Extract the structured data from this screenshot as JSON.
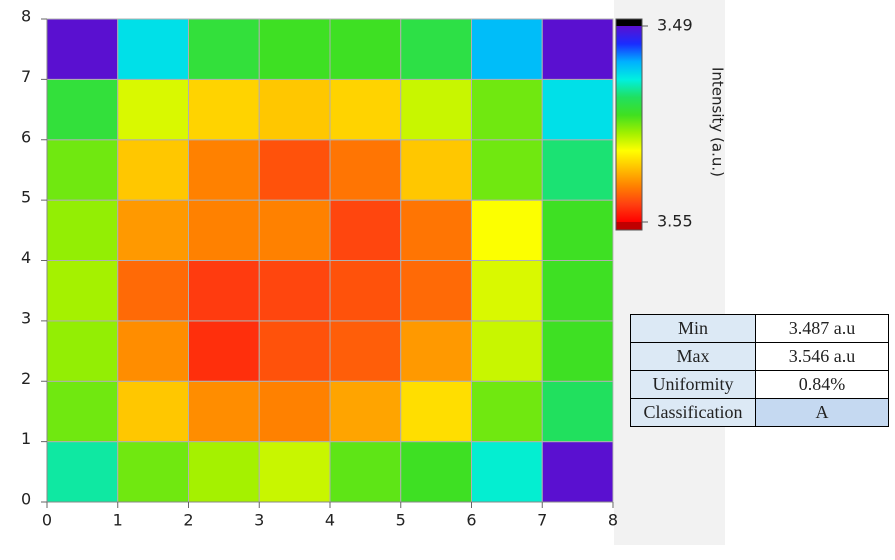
{
  "chart_data": {
    "type": "heatmap",
    "xlim": [
      0,
      8
    ],
    "xticks": [
      0,
      1,
      2,
      3,
      4,
      5,
      6,
      7,
      8
    ],
    "ylim": [
      0,
      8
    ],
    "yticks": [
      0,
      1,
      2,
      3,
      4,
      5,
      6,
      7,
      8
    ],
    "z": [
      [
        3.509,
        3.52,
        3.523,
        3.525,
        3.519,
        3.517,
        3.507,
        3.488
      ],
      [
        3.52,
        3.533,
        3.538,
        3.539,
        3.536,
        3.531,
        3.52,
        3.512
      ],
      [
        3.522,
        3.538,
        3.546,
        3.543,
        3.542,
        3.537,
        3.525,
        3.517
      ],
      [
        3.523,
        3.541,
        3.545,
        3.544,
        3.543,
        3.541,
        3.526,
        3.517
      ],
      [
        3.522,
        3.537,
        3.539,
        3.539,
        3.544,
        3.54,
        3.528,
        3.517
      ],
      [
        3.52,
        3.533,
        3.539,
        3.543,
        3.54,
        3.533,
        3.52,
        3.511
      ],
      [
        3.515,
        3.526,
        3.532,
        3.533,
        3.532,
        3.525,
        3.52,
        3.505
      ],
      [
        3.488,
        3.505,
        3.515,
        3.517,
        3.517,
        3.514,
        3.502,
        3.487
      ]
    ],
    "clim": [
      3.49,
      3.55
    ],
    "colorbar_ticks": [
      3.49,
      3.55
    ],
    "colorbar_label": "Intensity (a.u.)",
    "colormap": [
      "#5a10d0",
      "#1a2cff",
      "#00b0ff",
      "#00f0e0",
      "#20e060",
      "#40e020",
      "#a0f000",
      "#ffff00",
      "#ffc000",
      "#ff8000",
      "#ff4010",
      "#ff0000"
    ],
    "grid_color": "#b0b0b0"
  },
  "table": {
    "rows": [
      [
        "Min",
        "3.487 a.u"
      ],
      [
        "Max",
        "3.546 a.u"
      ],
      [
        "Uniformity",
        "0.84%"
      ],
      [
        "Classification",
        "A"
      ]
    ]
  }
}
